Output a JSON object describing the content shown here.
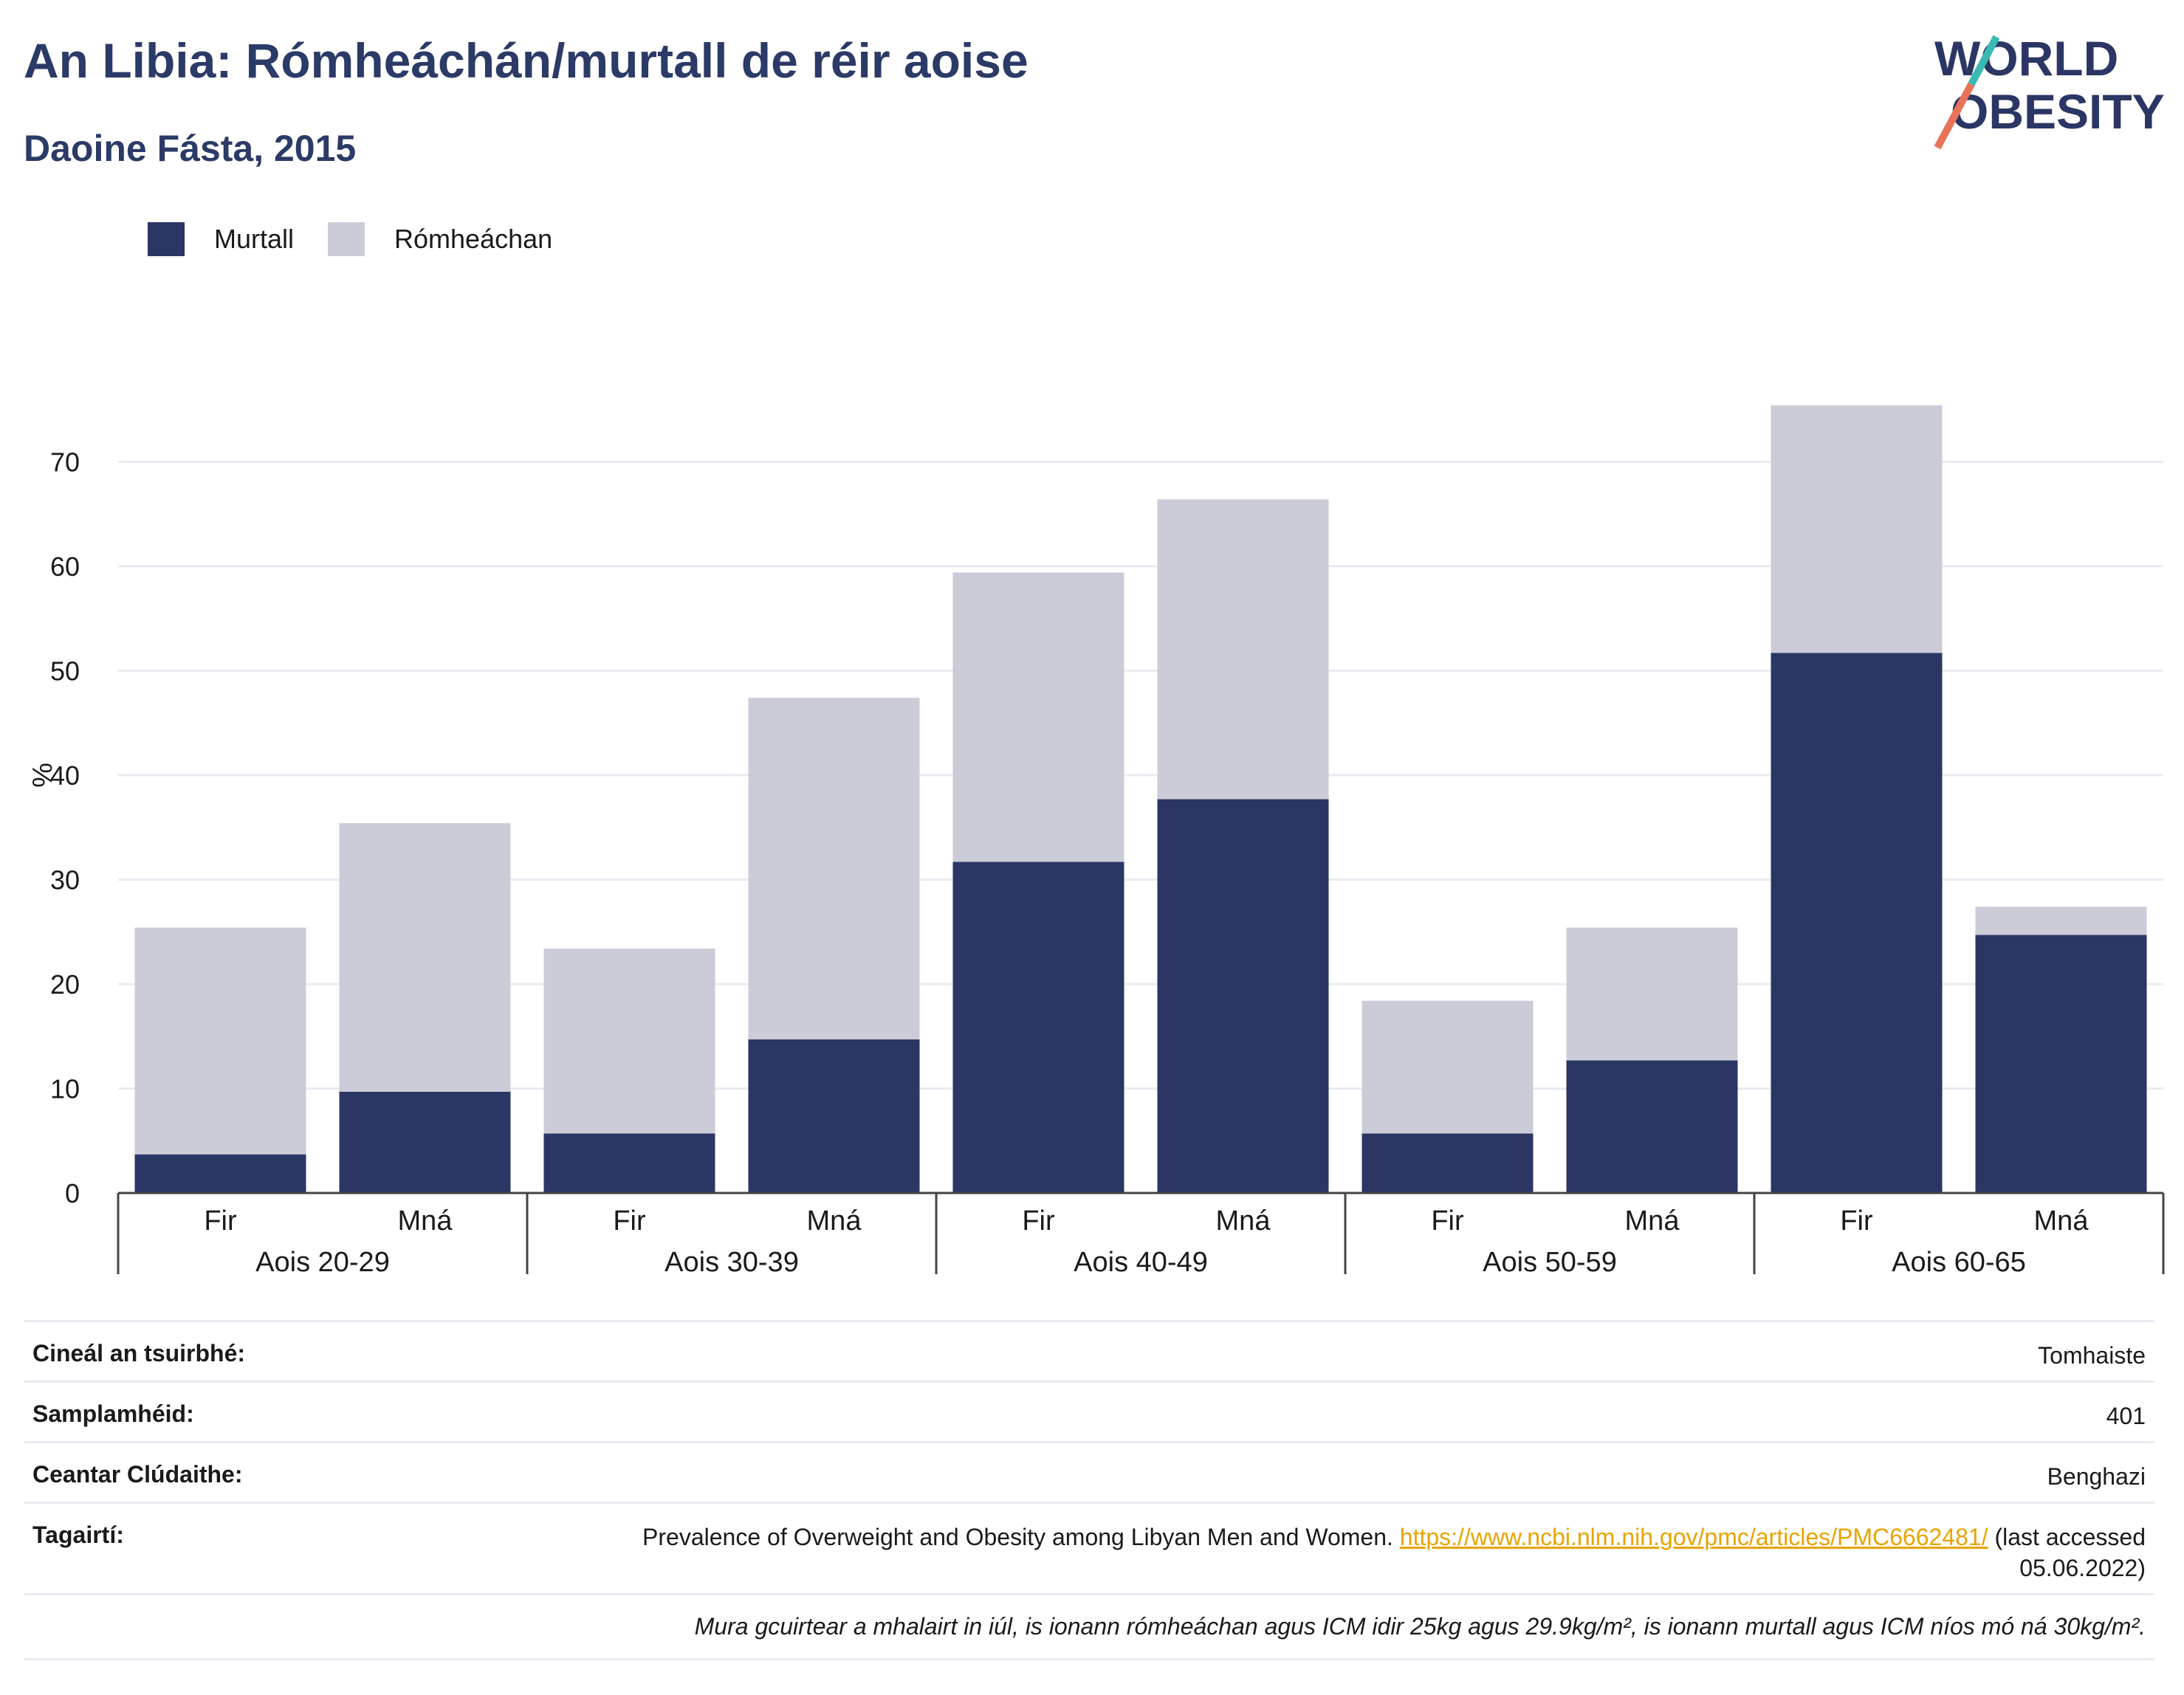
{
  "header": {
    "title": "An Libia: Rómheáchán/murtall de réir aoise",
    "subtitle": "Daoine Fásta, 2015"
  },
  "logo": {
    "line1": "WORLD",
    "line2": "OBESITY"
  },
  "legend": [
    {
      "label": "Murtall",
      "color": "#2b3664"
    },
    {
      "label": "Rómheáchan",
      "color": "#cbccd8"
    }
  ],
  "chart_data": {
    "type": "bar",
    "stacked": true,
    "ylabel": "%",
    "xlabel": "",
    "ylim": [
      0,
      80
    ],
    "yticks": [
      0,
      10,
      20,
      30,
      40,
      50,
      60,
      70
    ],
    "grid": true,
    "legend_position": "top-left",
    "groups": [
      "Aois 20-29",
      "Aois 30-39",
      "Aois 40-49",
      "Aois 50-59",
      "Aois 60-65"
    ],
    "categories": [
      "Fir",
      "Mná",
      "Fir",
      "Mná",
      "Fir",
      "Mná",
      "Fir",
      "Mná",
      "Fir",
      "Mná"
    ],
    "series": [
      {
        "name": "Murtall",
        "color": "#2b3664",
        "values": [
          3.7,
          9.7,
          5.7,
          14.7,
          31.7,
          37.7,
          5.7,
          12.7,
          51.7,
          24.7
        ]
      },
      {
        "name": "Rómheáchan",
        "color": "#cbccd8",
        "values": [
          21.7,
          25.7,
          17.7,
          32.7,
          27.7,
          28.7,
          12.7,
          12.7,
          23.7,
          2.7
        ]
      }
    ]
  },
  "info": {
    "rows": [
      {
        "key": "Cineál an tsuirbhé:",
        "value": "Tomhaiste"
      },
      {
        "key": "Samplamhéid:",
        "value": "401"
      },
      {
        "key": "Ceantar Clúdaithe:",
        "value": "Benghazi"
      }
    ],
    "reference": {
      "key": "Tagairtí:",
      "text": "Prevalence of Overweight and Obesity among Libyan Men and Women. ",
      "link": "https://www.ncbi.nlm.nih.gov/pmc/articles/PMC6662481/",
      "suffix": " (last accessed 05.06.2022)"
    },
    "note": "Mura gcuirtear a mhalairt in iúl, is ionann rómheáchan agus ICM idir 25kg agus 29.9kg/m², is ionann murtall agus ICM níos mó ná 30kg/m²."
  }
}
